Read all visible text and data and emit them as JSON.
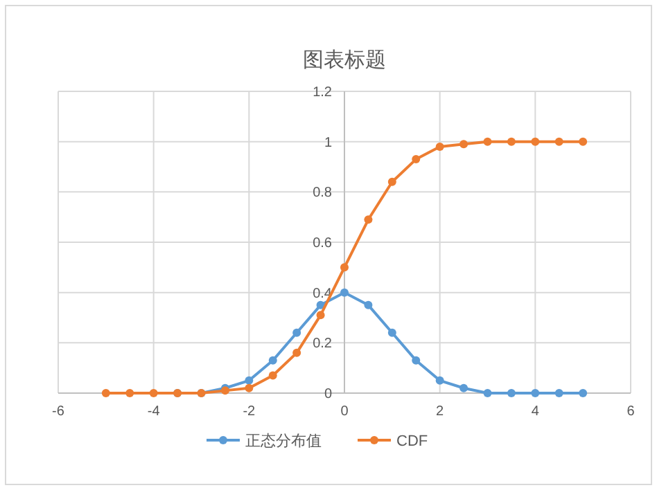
{
  "chart_data": {
    "type": "line",
    "title": "图表标题",
    "x": [
      -5,
      -4.5,
      -4,
      -3.5,
      -3,
      -2.5,
      -2,
      -1.5,
      -1,
      -0.5,
      0,
      0.5,
      1,
      1.5,
      2,
      2.5,
      3,
      3.5,
      4,
      4.5,
      5
    ],
    "series": [
      {
        "name": "正态分布值",
        "color": "#5b9bd5",
        "values": [
          null,
          null,
          null,
          0,
          0,
          0.02,
          0.05,
          0.13,
          0.24,
          0.35,
          0.4,
          0.35,
          0.24,
          0.13,
          0.05,
          0.02,
          0,
          0,
          0,
          0,
          0
        ]
      },
      {
        "name": "CDF",
        "color": "#ed7d31",
        "values": [
          0,
          0,
          0,
          0,
          0,
          0.01,
          0.02,
          0.07,
          0.16,
          0.31,
          0.5,
          0.69,
          0.84,
          0.93,
          0.98,
          0.99,
          1,
          1,
          1,
          1,
          1
        ]
      }
    ],
    "xlim": [
      -6,
      6
    ],
    "xticks": [
      -6,
      -4,
      -2,
      0,
      2,
      4,
      6
    ],
    "ylim": [
      0,
      1.2
    ],
    "yticks": [
      0,
      0.2,
      0.4,
      0.6,
      0.8,
      1,
      1.2
    ],
    "grid": true,
    "legend": "bottom",
    "marker": "circle",
    "line_style": "solid"
  }
}
